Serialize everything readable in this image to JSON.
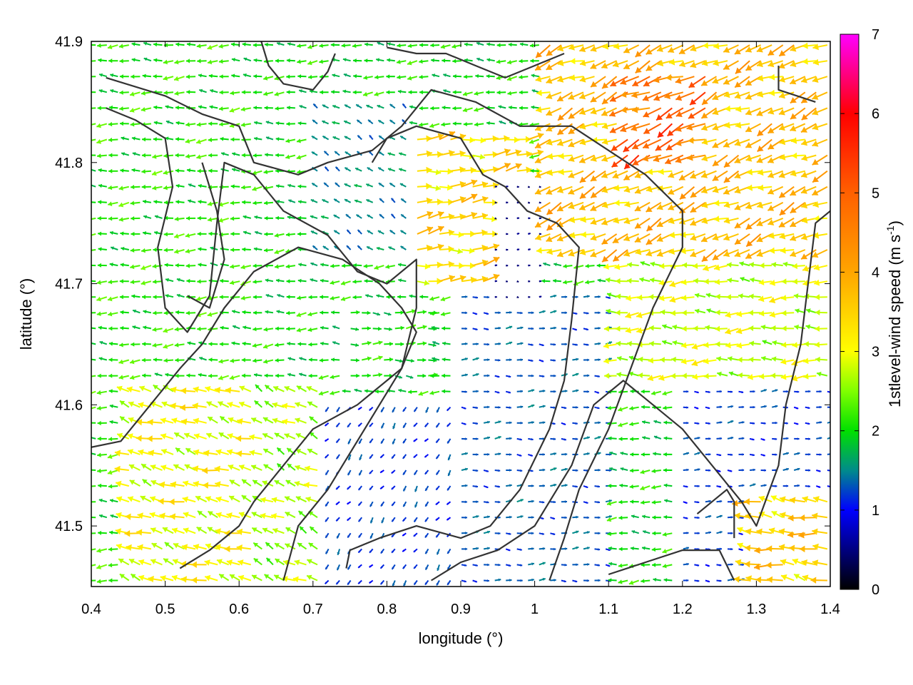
{
  "chart_data": {
    "type": "vector-field",
    "xlabel": "longitude (°)",
    "ylabel": "latitude (°)",
    "xlim": [
      0.4,
      1.4
    ],
    "ylim": [
      41.45,
      41.9
    ],
    "xticks": [
      "0.4",
      "0.5",
      "0.6",
      "0.7",
      "0.8",
      "0.9",
      "1",
      "1.1",
      "1.2",
      "1.3",
      "1.4"
    ],
    "xtick_values": [
      0.4,
      0.5,
      0.6,
      0.7,
      0.8,
      0.9,
      1.0,
      1.1,
      1.2,
      1.3,
      1.4
    ],
    "yticks": [
      "41.5",
      "41.6",
      "41.7",
      "41.8",
      "41.9"
    ],
    "ytick_values": [
      41.5,
      41.6,
      41.7,
      41.8,
      41.9
    ],
    "colorbar": {
      "label_main": "1stlevel-wind speed (m s",
      "label_sup": "-1",
      "label_end": ")",
      "range": [
        0,
        7
      ],
      "ticks": [
        "0",
        "1",
        "2",
        "3",
        "4",
        "5",
        "6",
        "7"
      ],
      "tick_values": [
        0,
        1,
        2,
        3,
        4,
        5,
        6,
        7
      ],
      "stops": [
        {
          "v": 0.0,
          "color": "#000000"
        },
        {
          "v": 1.0,
          "color": "#0000ff"
        },
        {
          "v": 1.5,
          "color": "#008b8b"
        },
        {
          "v": 2.0,
          "color": "#00e000"
        },
        {
          "v": 2.5,
          "color": "#80ff00"
        },
        {
          "v": 3.0,
          "color": "#ffff00"
        },
        {
          "v": 4.0,
          "color": "#ffa500"
        },
        {
          "v": 5.0,
          "color": "#ff6000"
        },
        {
          "v": 6.0,
          "color": "#ff0000"
        },
        {
          "v": 7.0,
          "color": "#ff00ff"
        }
      ]
    },
    "grid": false,
    "vector_grid_step_deg": 0.01,
    "wind_regions": [
      {
        "lon": [
          0.4,
          0.62
        ],
        "lat": [
          41.45,
          41.9
        ],
        "u": -2.2,
        "v": 0.0,
        "speed": 2.1
      },
      {
        "lon": [
          0.45,
          0.7
        ],
        "lat": [
          41.45,
          41.62
        ],
        "u": -2.8,
        "v": 0.9,
        "speed": 3.0
      },
      {
        "lon": [
          0.62,
          0.72
        ],
        "lat": [
          41.45,
          41.62
        ],
        "u": -2.2,
        "v": 1.1,
        "speed": 2.6
      },
      {
        "lon": [
          0.72,
          0.9
        ],
        "lat": [
          41.45,
          41.6
        ],
        "u": -0.6,
        "v": -0.8,
        "speed": 1.2
      },
      {
        "lon": [
          0.9,
          1.1
        ],
        "lat": [
          41.45,
          41.7
        ],
        "u": 0.9,
        "v": 0.0,
        "speed": 1.3
      },
      {
        "lon": [
          0.74,
          0.86
        ],
        "lat": [
          41.62,
          41.68
        ],
        "u": 1.8,
        "v": 0.0,
        "speed": 2.0
      },
      {
        "lon": [
          0.7,
          0.84
        ],
        "lat": [
          41.72,
          41.85
        ],
        "u": -0.8,
        "v": 0.5,
        "speed": 1.5
      },
      {
        "lon": [
          0.84,
          1.0
        ],
        "lat": [
          41.7,
          41.82
        ],
        "u": 3.0,
        "v": 0.4,
        "speed": 3.4
      },
      {
        "lon": [
          0.94,
          1.02
        ],
        "lat": [
          41.68,
          41.78
        ],
        "u": 0.3,
        "v": 0.0,
        "speed": 0.5
      },
      {
        "lon": [
          1.02,
          1.4
        ],
        "lat": [
          41.72,
          41.9
        ],
        "u": -3.2,
        "v": -1.3,
        "speed": 3.7
      },
      {
        "lon": [
          1.12,
          1.24
        ],
        "lat": [
          41.8,
          41.88
        ],
        "u": -4.0,
        "v": -1.8,
        "speed": 4.8
      },
      {
        "lon": [
          1.1,
          1.4
        ],
        "lat": [
          41.62,
          41.72
        ],
        "u": -2.6,
        "v": 0.0,
        "speed": 2.8
      },
      {
        "lon": [
          1.2,
          1.4
        ],
        "lat": [
          41.45,
          41.62
        ],
        "u": 0.6,
        "v": 0.0,
        "speed": 1.2
      },
      {
        "lon": [
          1.28,
          1.4
        ],
        "lat": [
          41.45,
          41.52
        ],
        "u": -3.0,
        "v": 0.5,
        "speed": 3.5
      }
    ],
    "contours": [
      [
        [
          0.42,
          41.87
        ],
        [
          0.5,
          41.855
        ],
        [
          0.55,
          41.84
        ],
        [
          0.6,
          41.83
        ],
        [
          0.62,
          41.8
        ],
        [
          0.68,
          41.79
        ],
        [
          0.72,
          41.8
        ],
        [
          0.78,
          41.81
        ],
        [
          0.82,
          41.83
        ],
        [
          0.86,
          41.86
        ],
        [
          0.92,
          41.85
        ],
        [
          0.98,
          41.83
        ],
        [
          1.05,
          41.83
        ],
        [
          1.1,
          41.81
        ],
        [
          1.15,
          41.79
        ],
        [
          1.2,
          41.76
        ],
        [
          1.2,
          41.73
        ],
        [
          1.16,
          41.68
        ],
        [
          1.13,
          41.63
        ],
        [
          1.1,
          41.58
        ],
        [
          1.06,
          41.53
        ],
        [
          1.04,
          41.49
        ],
        [
          1.02,
          41.455
        ]
      ],
      [
        [
          0.42,
          41.845
        ],
        [
          0.46,
          41.835
        ],
        [
          0.5,
          41.82
        ],
        [
          0.51,
          41.78
        ],
        [
          0.49,
          41.73
        ],
        [
          0.5,
          41.68
        ],
        [
          0.53,
          41.66
        ],
        [
          0.56,
          41.69
        ],
        [
          0.57,
          41.75
        ],
        [
          0.58,
          41.8
        ],
        [
          0.62,
          41.79
        ],
        [
          0.66,
          41.76
        ],
        [
          0.72,
          41.74
        ],
        [
          0.76,
          41.71
        ],
        [
          0.8,
          41.7
        ],
        [
          0.84,
          41.72
        ],
        [
          0.84,
          41.68
        ],
        [
          0.82,
          41.63
        ],
        [
          0.79,
          41.6
        ],
        [
          0.74,
          41.55
        ],
        [
          0.72,
          41.53
        ],
        [
          0.68,
          41.5
        ],
        [
          0.66,
          41.455
        ]
      ],
      [
        [
          0.4,
          41.565
        ],
        [
          0.44,
          41.57
        ],
        [
          0.48,
          41.6
        ],
        [
          0.52,
          41.63
        ],
        [
          0.55,
          41.65
        ],
        [
          0.58,
          41.68
        ],
        [
          0.62,
          41.71
        ],
        [
          0.68,
          41.73
        ],
        [
          0.74,
          41.72
        ],
        [
          0.79,
          41.7
        ],
        [
          0.82,
          41.68
        ],
        [
          0.84,
          41.66
        ],
        [
          0.82,
          41.63
        ],
        [
          0.76,
          41.6
        ],
        [
          0.7,
          41.58
        ],
        [
          0.66,
          41.55
        ],
        [
          0.62,
          41.52
        ],
        [
          0.6,
          41.5
        ],
        [
          0.56,
          41.48
        ],
        [
          0.52,
          41.465
        ]
      ],
      [
        [
          0.745,
          41.465
        ],
        [
          0.75,
          41.48
        ],
        [
          0.79,
          41.49
        ],
        [
          0.84,
          41.5
        ],
        [
          0.9,
          41.49
        ],
        [
          0.94,
          41.5
        ],
        [
          0.98,
          41.53
        ],
        [
          1.02,
          41.58
        ],
        [
          1.04,
          41.62
        ],
        [
          1.05,
          41.67
        ],
        [
          1.06,
          41.73
        ],
        [
          1.03,
          41.75
        ],
        [
          0.99,
          41.76
        ],
        [
          0.96,
          41.78
        ],
        [
          0.93,
          41.79
        ],
        [
          0.9,
          41.82
        ],
        [
          0.84,
          41.83
        ],
        [
          0.8,
          41.82
        ],
        [
          0.78,
          41.8
        ]
      ],
      [
        [
          0.86,
          41.455
        ],
        [
          0.9,
          41.47
        ],
        [
          0.95,
          41.48
        ],
        [
          1.0,
          41.5
        ],
        [
          1.05,
          41.55
        ],
        [
          1.08,
          41.6
        ],
        [
          1.12,
          41.62
        ],
        [
          1.16,
          41.6
        ],
        [
          1.2,
          41.58
        ],
        [
          1.24,
          41.55
        ],
        [
          1.28,
          41.52
        ],
        [
          1.3,
          41.5
        ],
        [
          1.33,
          41.55
        ],
        [
          1.34,
          41.6
        ],
        [
          1.36,
          41.65
        ],
        [
          1.37,
          41.7
        ],
        [
          1.38,
          41.75
        ],
        [
          1.4,
          41.76
        ]
      ],
      [
        [
          1.1,
          41.46
        ],
        [
          1.15,
          41.47
        ],
        [
          1.2,
          41.48
        ],
        [
          1.25,
          41.48
        ],
        [
          1.27,
          41.455
        ]
      ],
      [
        [
          1.33,
          41.88
        ],
        [
          1.33,
          41.86
        ],
        [
          1.38,
          41.85
        ]
      ],
      [
        [
          0.55,
          41.8
        ],
        [
          0.57,
          41.76
        ],
        [
          0.58,
          41.72
        ],
        [
          0.56,
          41.68
        ],
        [
          0.53,
          41.69
        ]
      ],
      [
        [
          0.63,
          41.9
        ],
        [
          0.64,
          41.88
        ],
        [
          0.66,
          41.865
        ],
        [
          0.7,
          41.86
        ],
        [
          0.72,
          41.875
        ],
        [
          0.73,
          41.89
        ]
      ],
      [
        [
          0.8,
          41.895
        ],
        [
          0.84,
          41.89
        ],
        [
          0.88,
          41.89
        ],
        [
          0.92,
          41.88
        ],
        [
          0.96,
          41.87
        ],
        [
          1.0,
          41.88
        ],
        [
          1.04,
          41.89
        ]
      ],
      [
        [
          1.22,
          41.51
        ],
        [
          1.24,
          41.52
        ],
        [
          1.26,
          41.53
        ],
        [
          1.27,
          41.52
        ],
        [
          1.27,
          41.49
        ]
      ]
    ]
  }
}
